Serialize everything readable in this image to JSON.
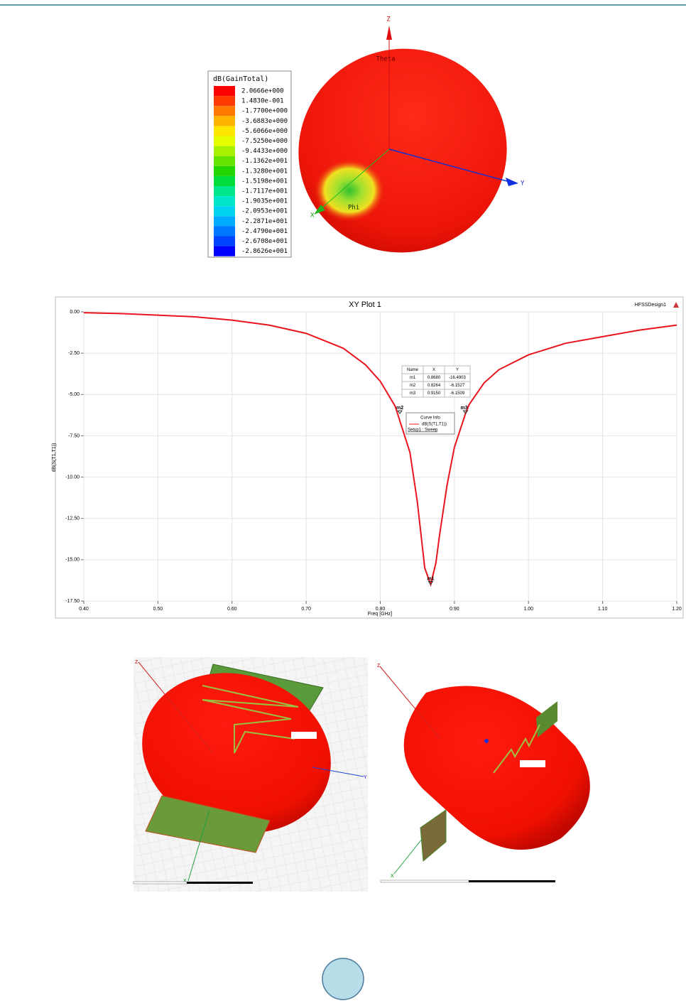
{
  "figure_top": {
    "axes": {
      "z": "Z",
      "theta": "Theta",
      "y": "Y",
      "x": "X",
      "phi": "Phi"
    },
    "legend": {
      "title": "dB(GainTotal)",
      "entries": [
        {
          "label": "2.0666e+000",
          "color": "#ff0000"
        },
        {
          "label": "1.4830e-001",
          "color": "#ff3a00"
        },
        {
          "label": "-1.7700e+000",
          "color": "#ff7800"
        },
        {
          "label": "-3.6883e+000",
          "color": "#ffb400"
        },
        {
          "label": "-5.6066e+000",
          "color": "#ffe600"
        },
        {
          "label": "-7.5250e+000",
          "color": "#e6ff00"
        },
        {
          "label": "-9.4433e+000",
          "color": "#a8f000"
        },
        {
          "label": "-1.1362e+001",
          "color": "#64e400"
        },
        {
          "label": "-1.3280e+001",
          "color": "#22d400"
        },
        {
          "label": "-1.5198e+001",
          "color": "#00dc3c"
        },
        {
          "label": "-1.7117e+001",
          "color": "#00e68c"
        },
        {
          "label": "-1.9035e+001",
          "color": "#00e6c8"
        },
        {
          "label": "-2.0953e+001",
          "color": "#00d2f0"
        },
        {
          "label": "-2.2871e+001",
          "color": "#00aaff"
        },
        {
          "label": "-2.4790e+001",
          "color": "#0078ff"
        },
        {
          "label": "-2.6708e+001",
          "color": "#0044ff"
        },
        {
          "label": "-2.8626e+001",
          "color": "#0000ff"
        }
      ]
    }
  },
  "chart_data": {
    "type": "line",
    "title": "XY Plot 1",
    "design_label": "HFSSDesign1",
    "x_label": "Freq [GHz]",
    "y_label": "dB(S(T1,T1))",
    "x": [
      0.4,
      0.45,
      0.5,
      0.55,
      0.6,
      0.65,
      0.7,
      0.75,
      0.78,
      0.8,
      0.82,
      0.84,
      0.85,
      0.86,
      0.868,
      0.875,
      0.88,
      0.89,
      0.9,
      0.915,
      0.92,
      0.94,
      0.96,
      1.0,
      1.05,
      1.1,
      1.15,
      1.2
    ],
    "series": [
      {
        "name": "dB(S(T1,T1))",
        "color": "#e8141e",
        "values": [
          -0.05,
          -0.1,
          -0.2,
          -0.3,
          -0.5,
          -0.8,
          -1.3,
          -2.2,
          -3.2,
          -4.2,
          -5.7,
          -8.5,
          -11.5,
          -15.5,
          -16.5,
          -15.2,
          -13.5,
          -10.5,
          -8.2,
          -6.15,
          -5.6,
          -4.3,
          -3.5,
          -2.6,
          -1.9,
          -1.5,
          -1.1,
          -0.8
        ]
      }
    ],
    "xlim": [
      0.4,
      1.2
    ],
    "ylim": [
      -17.5,
      0
    ],
    "xticks": [
      {
        "value": 0.4,
        "label": "0.40"
      },
      {
        "value": 0.5,
        "label": "0.50"
      },
      {
        "value": 0.6,
        "label": "0.60"
      },
      {
        "value": 0.7,
        "label": "0.70"
      },
      {
        "value": 0.8,
        "label": "0.80"
      },
      {
        "value": 0.9,
        "label": "0.90"
      },
      {
        "value": 1.0,
        "label": "1.00"
      },
      {
        "value": 1.1,
        "label": "1.10"
      },
      {
        "value": 1.2,
        "label": "1.20"
      }
    ],
    "yticks": [
      {
        "value": 0,
        "label": "0.00"
      },
      {
        "value": -2.5,
        "label": "-2.50"
      },
      {
        "value": -5,
        "label": "-5.00"
      },
      {
        "value": -7.5,
        "label": "-7.50"
      },
      {
        "value": -10,
        "label": "-10.00"
      },
      {
        "value": -12.5,
        "label": "-12.50"
      },
      {
        "value": -15,
        "label": "-15.00"
      },
      {
        "value": -17.5,
        "label": "-17.50"
      }
    ],
    "grid": true,
    "marker_header": [
      "Name",
      "X",
      "Y"
    ],
    "markers": [
      {
        "name": "m1",
        "x": {
          "value": 0.868,
          "label": "0.8680"
        },
        "y": -16.4903
      },
      {
        "name": "m2",
        "x": {
          "value": 0.8264,
          "label": "0.8264"
        },
        "y": -6.1527
      },
      {
        "name": "m3",
        "x": {
          "value": 0.915,
          "label": "0.9150"
        },
        "y": -6.1509
      }
    ],
    "curve_info": {
      "title": "Curve Info",
      "setup": "Setup1 : Sweep"
    }
  },
  "figure_bottom": {
    "left_axes": {
      "z": "Z",
      "y": "Y",
      "x": "X"
    },
    "right_axes": {
      "z": "Z",
      "x": "X"
    }
  }
}
